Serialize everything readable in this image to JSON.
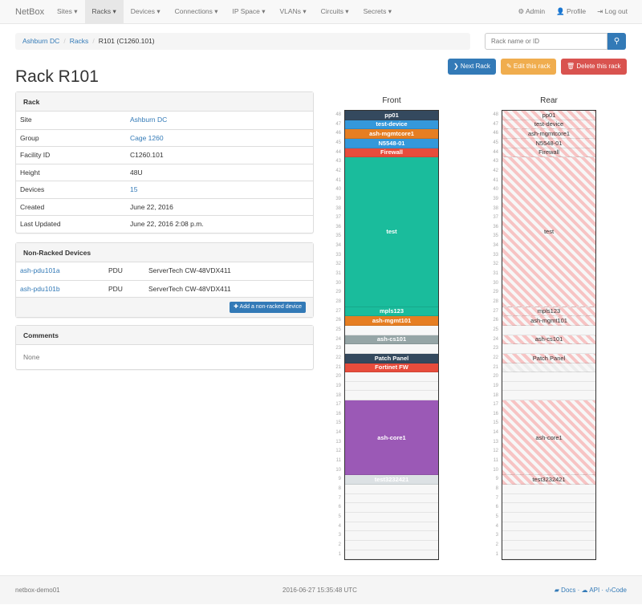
{
  "nav": {
    "brand": "NetBox",
    "items": [
      {
        "label": "Sites ▾"
      },
      {
        "label": "Racks ▾",
        "active": true
      },
      {
        "label": "Devices ▾"
      },
      {
        "label": "Connections ▾"
      },
      {
        "label": "IP Space ▾"
      },
      {
        "label": "VLANs ▾"
      },
      {
        "label": "Circuits ▾"
      },
      {
        "label": "Secrets ▾"
      }
    ],
    "admin": "⚙ Admin",
    "profile": "👤 Profile",
    "logout": "⇥ Log out"
  },
  "breadcrumb": [
    "Ashburn DC",
    "Racks",
    "R101 (C1260.101)"
  ],
  "search": {
    "placeholder": "Rack name or ID",
    "icon": "search-icon"
  },
  "buttons": {
    "next": "❯ Next Rack",
    "edit": "✎ Edit this rack",
    "delete": "🗑 Delete this rack"
  },
  "title": "Rack R101",
  "rack_panel": {
    "heading": "Rack",
    "rows": [
      {
        "k": "Site",
        "v": "Ashburn DC",
        "link": true
      },
      {
        "k": "Group",
        "v": "Cage 1260",
        "link": true
      },
      {
        "k": "Facility ID",
        "v": "C1260.101"
      },
      {
        "k": "Height",
        "v": "48U"
      },
      {
        "k": "Devices",
        "v": "15",
        "link": true
      },
      {
        "k": "Created",
        "v": "June 22, 2016"
      },
      {
        "k": "Last Updated",
        "v": "June 22, 2016 2:08 p.m."
      }
    ]
  },
  "nonracked": {
    "heading": "Non-Racked Devices",
    "rows": [
      {
        "name": "ash-pdu101a",
        "role": "PDU",
        "type": "ServerTech CW-48VDX411"
      },
      {
        "name": "ash-pdu101b",
        "role": "PDU",
        "type": "ServerTech CW-48VDX411"
      }
    ],
    "add": "✚ Add a non-racked device"
  },
  "comments": {
    "heading": "Comments",
    "text": "None"
  },
  "elevation": {
    "front_label": "Front",
    "rear_label": "Rear",
    "units": 48,
    "devices": [
      {
        "name": "pp01",
        "u": 48,
        "h": 1,
        "color": "#34495e"
      },
      {
        "name": "test-device",
        "u": 47,
        "h": 1,
        "color": "#3498db"
      },
      {
        "name": "ash-mgmtcore1",
        "u": 46,
        "h": 1,
        "color": "#e67e22"
      },
      {
        "name": "N5548-01",
        "u": 45,
        "h": 1,
        "color": "#3498db"
      },
      {
        "name": "Firewall",
        "u": 44,
        "h": 1,
        "color": "#e74c3c"
      },
      {
        "name": "test",
        "u": 28,
        "h": 16,
        "color": "#1abc9c"
      },
      {
        "name": "mpls123",
        "u": 27,
        "h": 1,
        "color": "#1abc9c"
      },
      {
        "name": "ash-mgmt101",
        "u": 26,
        "h": 1,
        "color": "#e67e22"
      },
      {
        "name": "ash-cs101",
        "u": 24,
        "h": 1,
        "color": "#95a5a6"
      },
      {
        "name": "Patch Panel",
        "u": 22,
        "h": 1,
        "color": "#34495e"
      },
      {
        "name": "Fortinet FW",
        "u": 21,
        "h": 1,
        "color": "#e74c3c",
        "half_depth": true
      },
      {
        "name": "ash-core1",
        "u": 10,
        "h": 8,
        "color": "#9b59b6"
      },
      {
        "name": "test3232421",
        "u": 9,
        "h": 1,
        "color": "#dce1e4"
      }
    ]
  },
  "footer": {
    "host": "netbox-demo01",
    "time": "2016-06-27 15:35:48 UTC",
    "docs": "Docs",
    "api": "API",
    "code": "Code"
  }
}
